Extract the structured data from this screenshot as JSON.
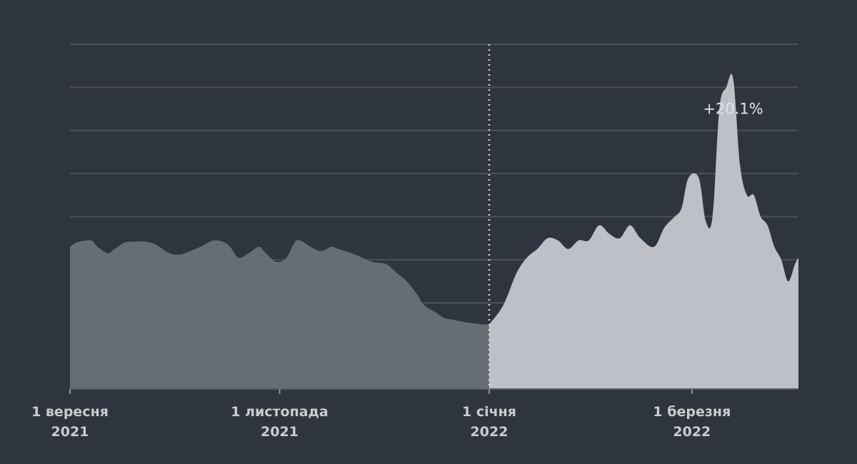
{
  "chart_data": {
    "type": "area",
    "title": "",
    "xlabel": "",
    "ylabel": "",
    "x_ticks": [
      {
        "date": "2021-09-01",
        "line1": "1 вересня",
        "line2": "2021"
      },
      {
        "date": "2021-11-01",
        "line1": "1 листопада",
        "line2": "2021"
      },
      {
        "date": "2022-01-01",
        "line1": "1 січня",
        "line2": "2022"
      },
      {
        "date": "2022-03-01",
        "line1": "1 березня",
        "line2": "2022"
      }
    ],
    "xlim": [
      "2021-09-01",
      "2022-04-01"
    ],
    "ylim": [
      0,
      8
    ],
    "grid": true,
    "split_date": "2022-01-01",
    "annotation": {
      "text": "+20.1%",
      "date": "2022-03-13",
      "y": 6.5
    },
    "series": [
      {
        "period": "before",
        "color": "#676d75",
        "x": [
          "2021-09-01",
          "2021-09-03",
          "2021-09-07",
          "2021-09-09",
          "2021-09-12",
          "2021-09-14",
          "2021-09-17",
          "2021-09-20",
          "2021-09-23",
          "2021-09-26",
          "2021-09-30",
          "2021-10-03",
          "2021-10-06",
          "2021-10-09",
          "2021-10-13",
          "2021-10-17",
          "2021-10-20",
          "2021-10-23",
          "2021-10-26",
          "2021-10-28",
          "2021-10-31",
          "2021-11-03",
          "2021-11-06",
          "2021-11-10",
          "2021-11-13",
          "2021-11-16",
          "2021-11-18",
          "2021-11-22",
          "2021-11-25",
          "2021-11-28",
          "2021-12-02",
          "2021-12-05",
          "2021-12-08",
          "2021-12-11",
          "2021-12-13",
          "2021-12-16",
          "2021-12-19",
          "2021-12-22",
          "2021-12-25",
          "2021-12-28",
          "2021-12-30",
          "2022-01-01"
        ],
        "values": [
          3.3,
          3.4,
          3.45,
          3.3,
          3.15,
          3.25,
          3.4,
          3.42,
          3.42,
          3.35,
          3.15,
          3.12,
          3.2,
          3.3,
          3.45,
          3.35,
          3.05,
          3.15,
          3.3,
          3.15,
          2.95,
          3.05,
          3.45,
          3.3,
          3.2,
          3.3,
          3.25,
          3.15,
          3.05,
          2.95,
          2.9,
          2.7,
          2.5,
          2.2,
          1.95,
          1.8,
          1.65,
          1.6,
          1.55,
          1.52,
          1.5,
          1.5
        ]
      },
      {
        "period": "after",
        "color": "#bdc1c7",
        "x": [
          "2022-01-01",
          "2022-01-04",
          "2022-01-06",
          "2022-01-09",
          "2022-01-12",
          "2022-01-15",
          "2022-01-18",
          "2022-01-21",
          "2022-01-24",
          "2022-01-27",
          "2022-01-30",
          "2022-02-02",
          "2022-02-05",
          "2022-02-08",
          "2022-02-11",
          "2022-02-14",
          "2022-02-18",
          "2022-02-21",
          "2022-02-24",
          "2022-02-26",
          "2022-02-28",
          "2022-03-03",
          "2022-03-05",
          "2022-03-07",
          "2022-03-09",
          "2022-03-11",
          "2022-03-13",
          "2022-03-15",
          "2022-03-17",
          "2022-03-19",
          "2022-03-21",
          "2022-03-23",
          "2022-03-25",
          "2022-03-27",
          "2022-03-29",
          "2022-03-31",
          "2022-04-01"
        ],
        "values": [
          1.5,
          1.8,
          2.1,
          2.7,
          3.05,
          3.25,
          3.5,
          3.45,
          3.25,
          3.45,
          3.45,
          3.8,
          3.6,
          3.5,
          3.8,
          3.5,
          3.3,
          3.75,
          4.0,
          4.2,
          4.9,
          4.9,
          3.9,
          4.0,
          6.5,
          7.0,
          7.2,
          5.2,
          4.5,
          4.5,
          4.0,
          3.8,
          3.3,
          3.0,
          2.5,
          2.9,
          3.05
        ]
      }
    ]
  }
}
